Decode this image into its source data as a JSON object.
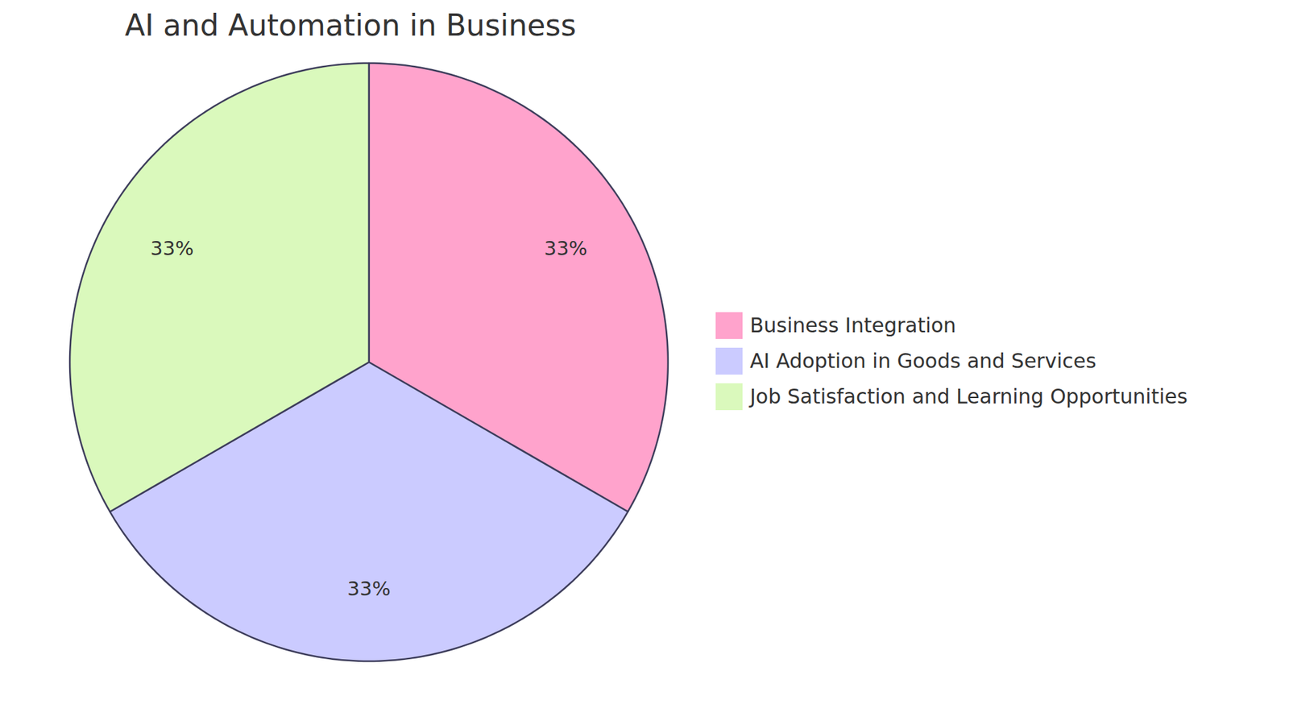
{
  "chart_data": {
    "type": "pie",
    "title": "AI and Automation in Business",
    "categories": [
      "Business Integration",
      "AI Adoption in Goods and Services",
      "Job Satisfaction and Learning Opportunities"
    ],
    "values": [
      33,
      33,
      33
    ],
    "value_labels": [
      "33%",
      "33%",
      "33%"
    ],
    "colors": [
      "#ffa3cc",
      "#cbcbff",
      "#daf9bc"
    ],
    "data_labels": true,
    "legend": "right"
  }
}
